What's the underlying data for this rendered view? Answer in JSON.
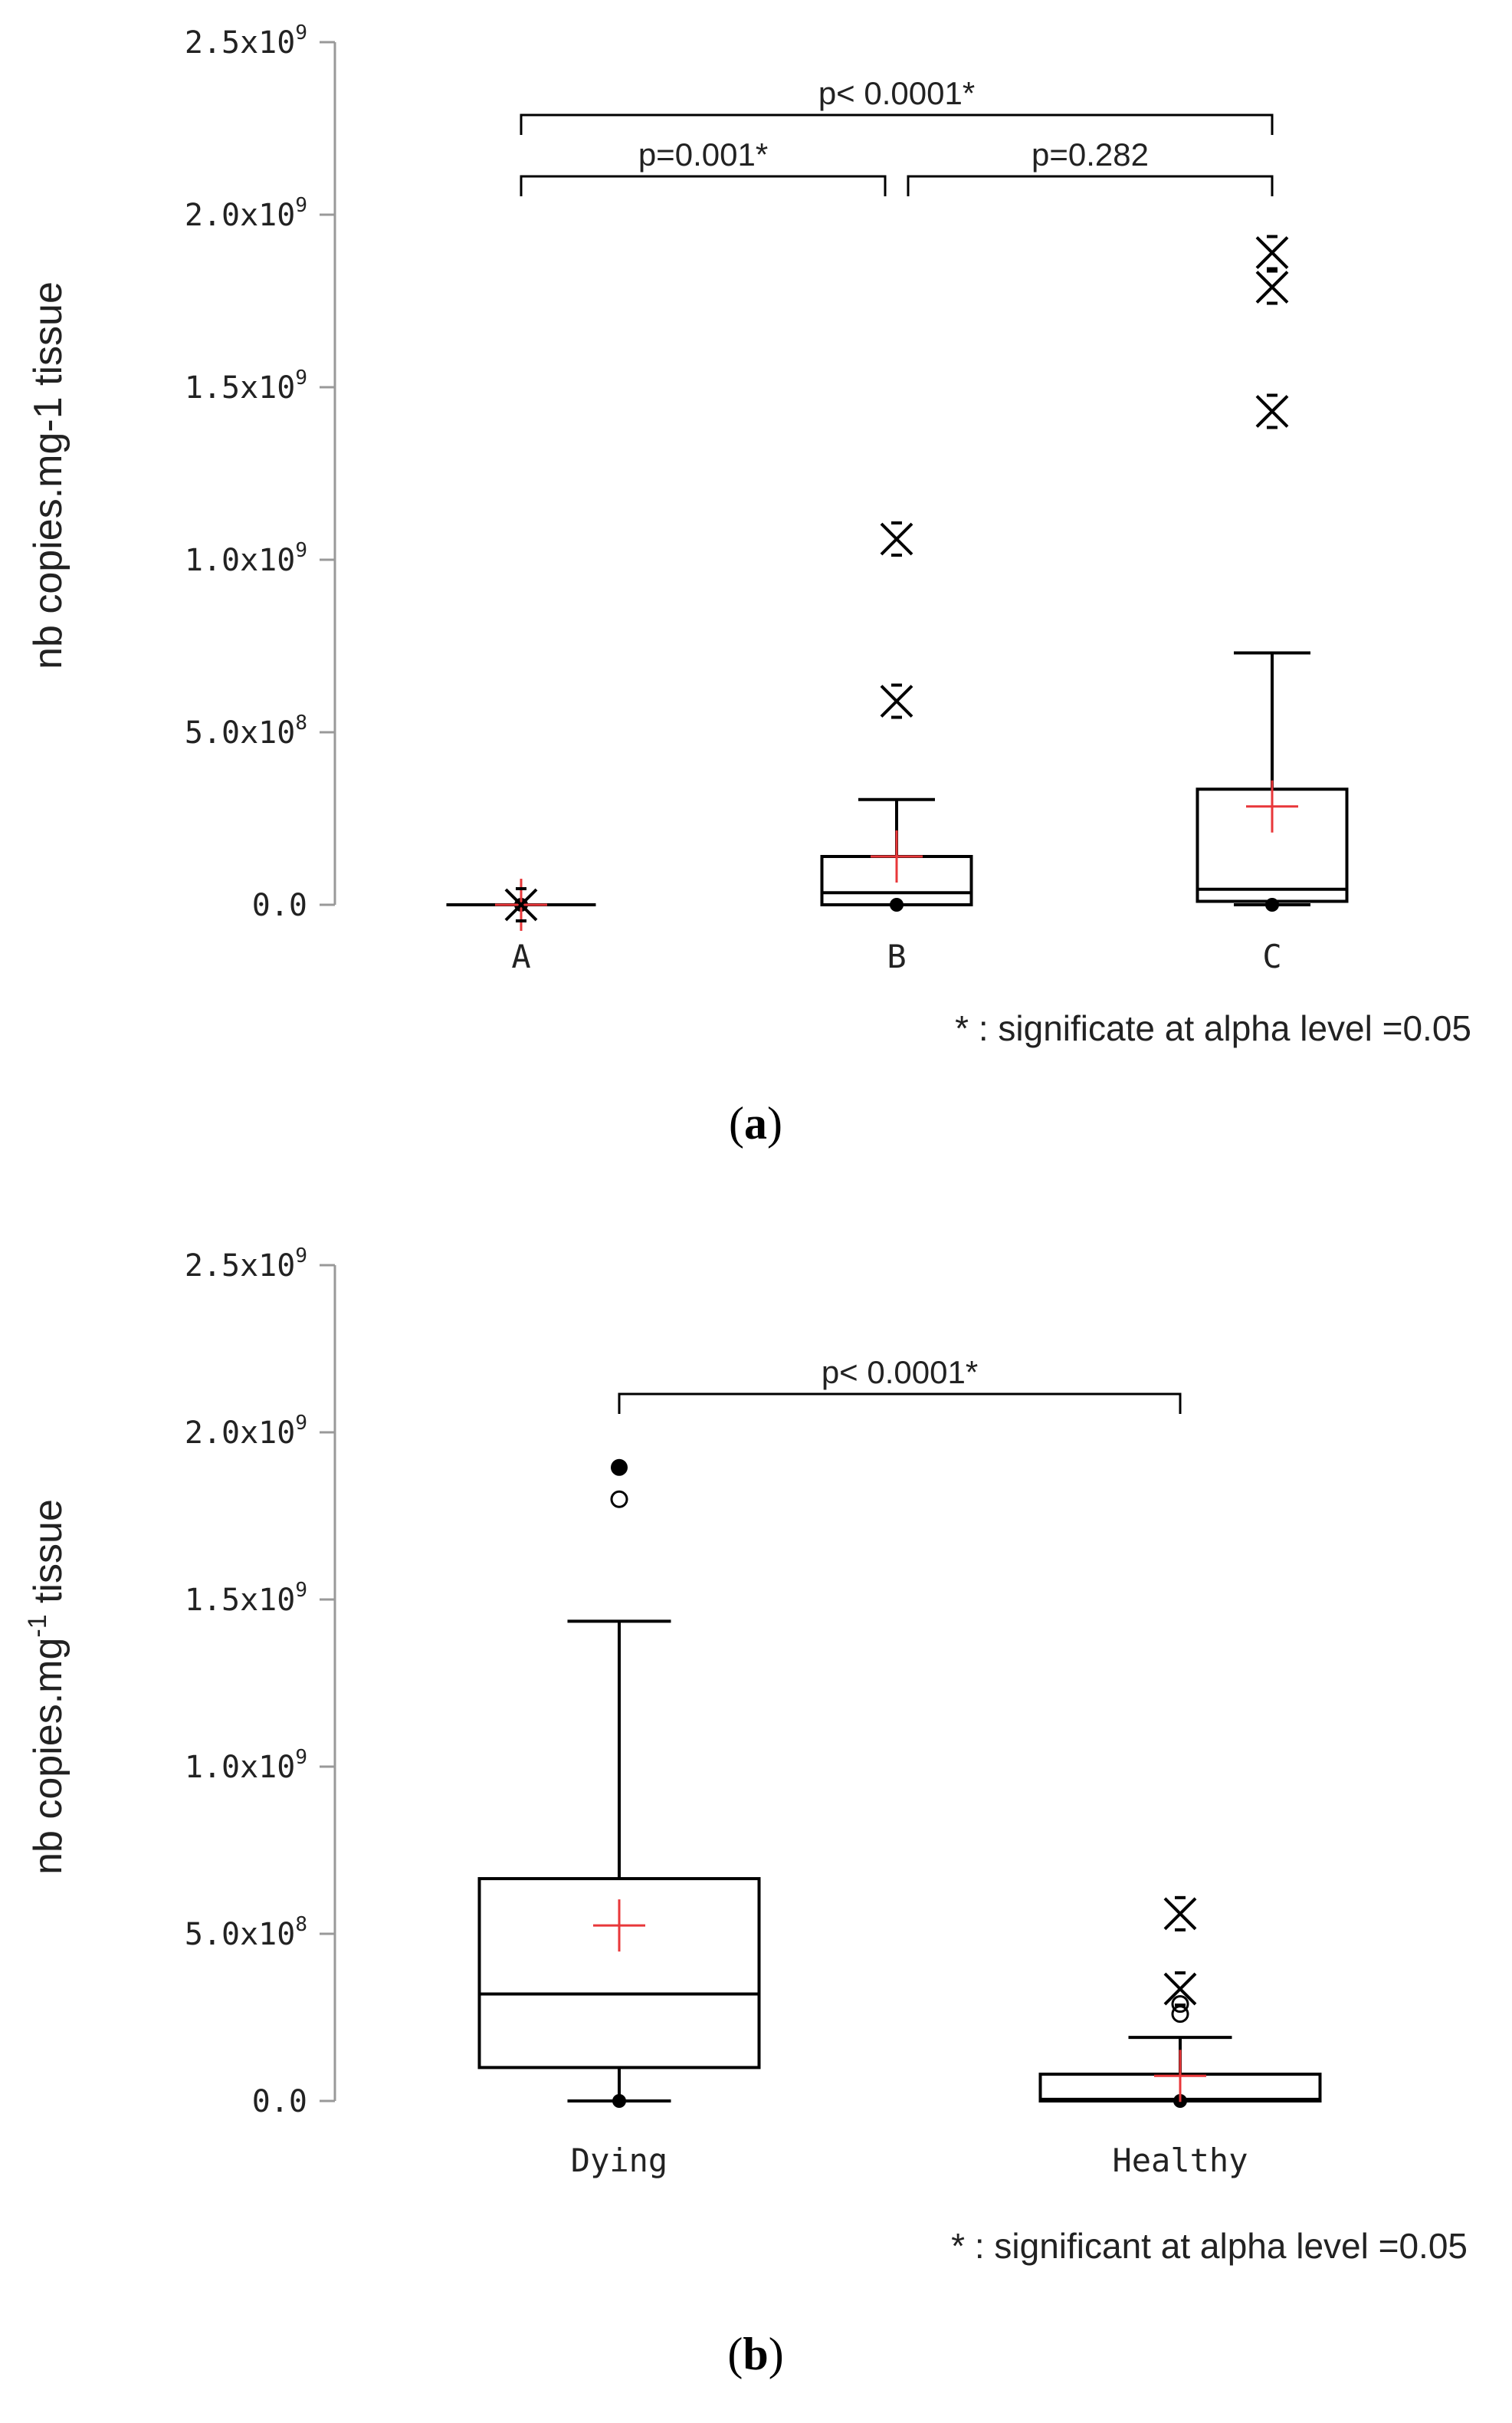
{
  "chart_data": [
    {
      "type": "box",
      "panel_label": "a",
      "ylabel": "nb copies.mg-1 tissue",
      "ylim": [
        0,
        2500000000
      ],
      "yticks": [
        {
          "value": 0,
          "base": "0.0",
          "exp": ""
        },
        {
          "value": 500000000,
          "base": "5.0x10",
          "exp": "8"
        },
        {
          "value": 1000000000,
          "base": "1.0x10",
          "exp": "9"
        },
        {
          "value": 1500000000,
          "base": "1.5x10",
          "exp": "9"
        },
        {
          "value": 2000000000,
          "base": "2.0x10",
          "exp": "9"
        },
        {
          "value": 2500000000,
          "base": "2.5x10",
          "exp": "9"
        }
      ],
      "categories": [
        "A",
        "B",
        "C"
      ],
      "boxes": [
        {
          "category": "A",
          "min": 0,
          "q1": 0,
          "median": 0,
          "q3": 0,
          "max": 0,
          "mean": 0,
          "outliers": [],
          "extremes": [
            0
          ]
        },
        {
          "category": "B",
          "min": 0,
          "q1": 0,
          "median": 35000000,
          "q3": 140000000,
          "max": 305000000,
          "mean": 140000000,
          "outliers": [],
          "extremes": [
            590000000,
            1060000000
          ]
        },
        {
          "category": "C",
          "min": 0,
          "q1": 10000000,
          "median": 45000000,
          "q3": 335000000,
          "max": 730000000,
          "mean": 285000000,
          "outliers": [],
          "extremes": [
            1430000000,
            1790000000,
            1890000000
          ]
        }
      ],
      "comparisons": [
        {
          "from": 0,
          "to": 1,
          "level": 1,
          "label": "p=0.001*"
        },
        {
          "from": 1,
          "to": 2,
          "level": 1,
          "label": "p=0.282"
        },
        {
          "from": 0,
          "to": 2,
          "level": 2,
          "label": "p< 0.0001*"
        }
      ],
      "note": "* : significate at alpha level =0.05"
    },
    {
      "type": "box",
      "panel_label": "b",
      "ylabel": "nb copies.mg",
      "ylabel_sup": "-1",
      "ylabel_suffix": " tissue",
      "ylim": [
        0,
        2500000000
      ],
      "yticks": [
        {
          "value": 0,
          "base": "0.0",
          "exp": ""
        },
        {
          "value": 500000000,
          "base": "5.0x10",
          "exp": "8"
        },
        {
          "value": 1000000000,
          "base": "1.0x10",
          "exp": "9"
        },
        {
          "value": 1500000000,
          "base": "1.5x10",
          "exp": "9"
        },
        {
          "value": 2000000000,
          "base": "2.0x10",
          "exp": "9"
        },
        {
          "value": 2500000000,
          "base": "2.5x10",
          "exp": "9"
        }
      ],
      "categories": [
        "Dying",
        "Healthy"
      ],
      "boxes": [
        {
          "category": "Dying",
          "min": 0,
          "q1": 100000000,
          "median": 320000000,
          "q3": 665000000,
          "max": 1435000000,
          "mean": 525000000,
          "outliers": [
            1800000000
          ],
          "extremes": [],
          "max_dot": 1895000000
        },
        {
          "category": "Healthy",
          "min": 0,
          "q1": 0,
          "median": 5000000,
          "q3": 80000000,
          "max": 190000000,
          "mean": 75000000,
          "outliers": [
            260000000,
            290000000
          ],
          "extremes": [
            335000000,
            560000000
          ]
        }
      ],
      "comparisons": [
        {
          "from": 0,
          "to": 1,
          "level": 1,
          "label": "p< 0.0001*"
        }
      ],
      "note": "* : significant at alpha level =0.05"
    }
  ],
  "colors": {
    "mean_marker": "#e8373a",
    "axis": "#999999",
    "ink": "#000000"
  }
}
